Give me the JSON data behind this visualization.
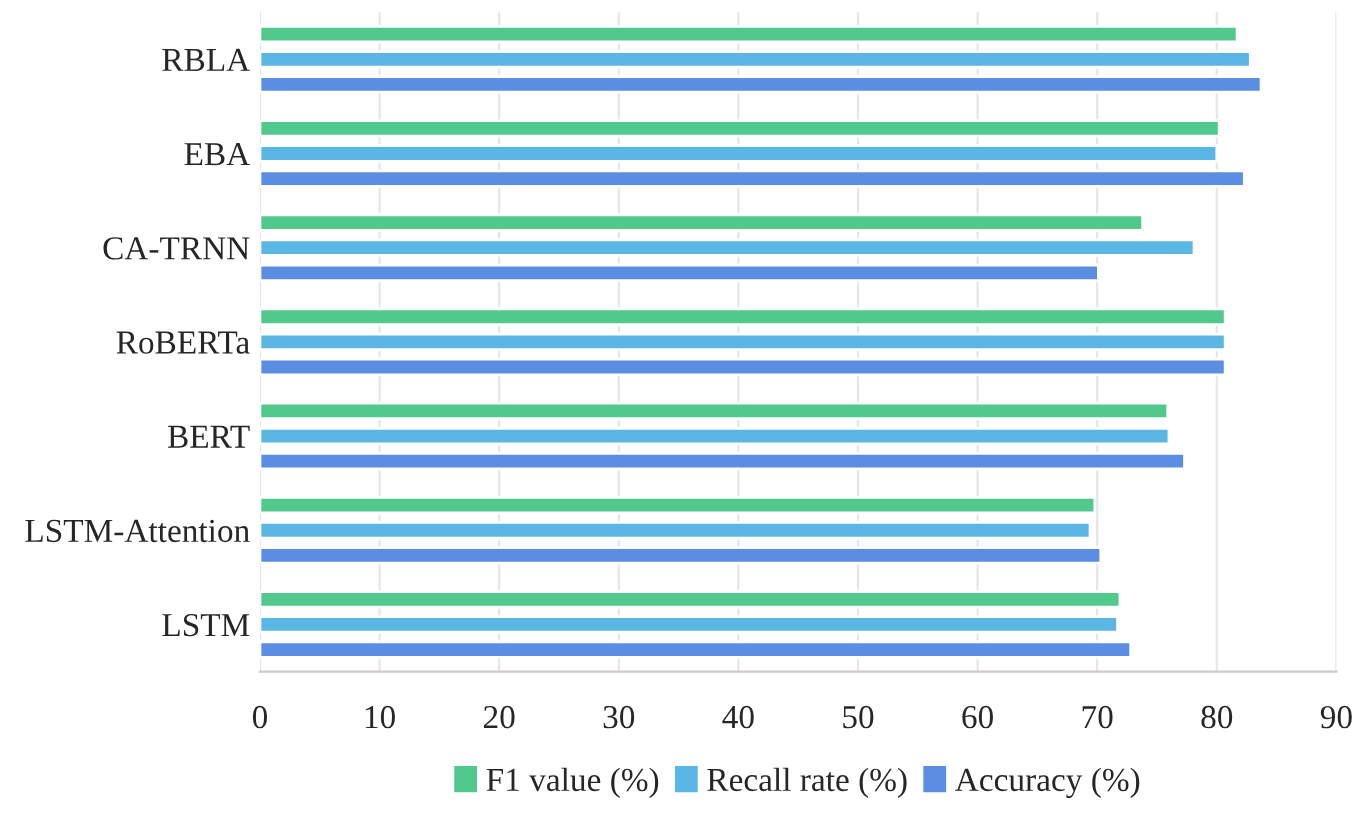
{
  "chart_data": {
    "type": "bar",
    "orientation": "horizontal",
    "categories": [
      "RBLA",
      "EBA",
      "CA-TRNN",
      "RoBERTa",
      "BERT",
      "LSTM-Attention",
      "LSTM"
    ],
    "series": [
      {
        "name": "F1 value (%)",
        "color": "#52c98c",
        "values": [
          81.7,
          80.2,
          73.8,
          80.7,
          75.9,
          69.8,
          71.9
        ]
      },
      {
        "name": "Recall rate (%)",
        "color": "#5ab6e3",
        "values": [
          82.8,
          80.0,
          78.1,
          80.7,
          76.0,
          69.4,
          71.7
        ]
      },
      {
        "name": "Accuracy (%)",
        "color": "#5b8ee3",
        "values": [
          83.7,
          82.3,
          70.1,
          80.7,
          77.3,
          70.3,
          72.8
        ]
      }
    ],
    "xlim": [
      0,
      90
    ],
    "xticks": [
      0,
      10,
      20,
      30,
      40,
      50,
      60,
      70,
      80,
      90
    ],
    "grid": "x",
    "legend": "bottom"
  }
}
